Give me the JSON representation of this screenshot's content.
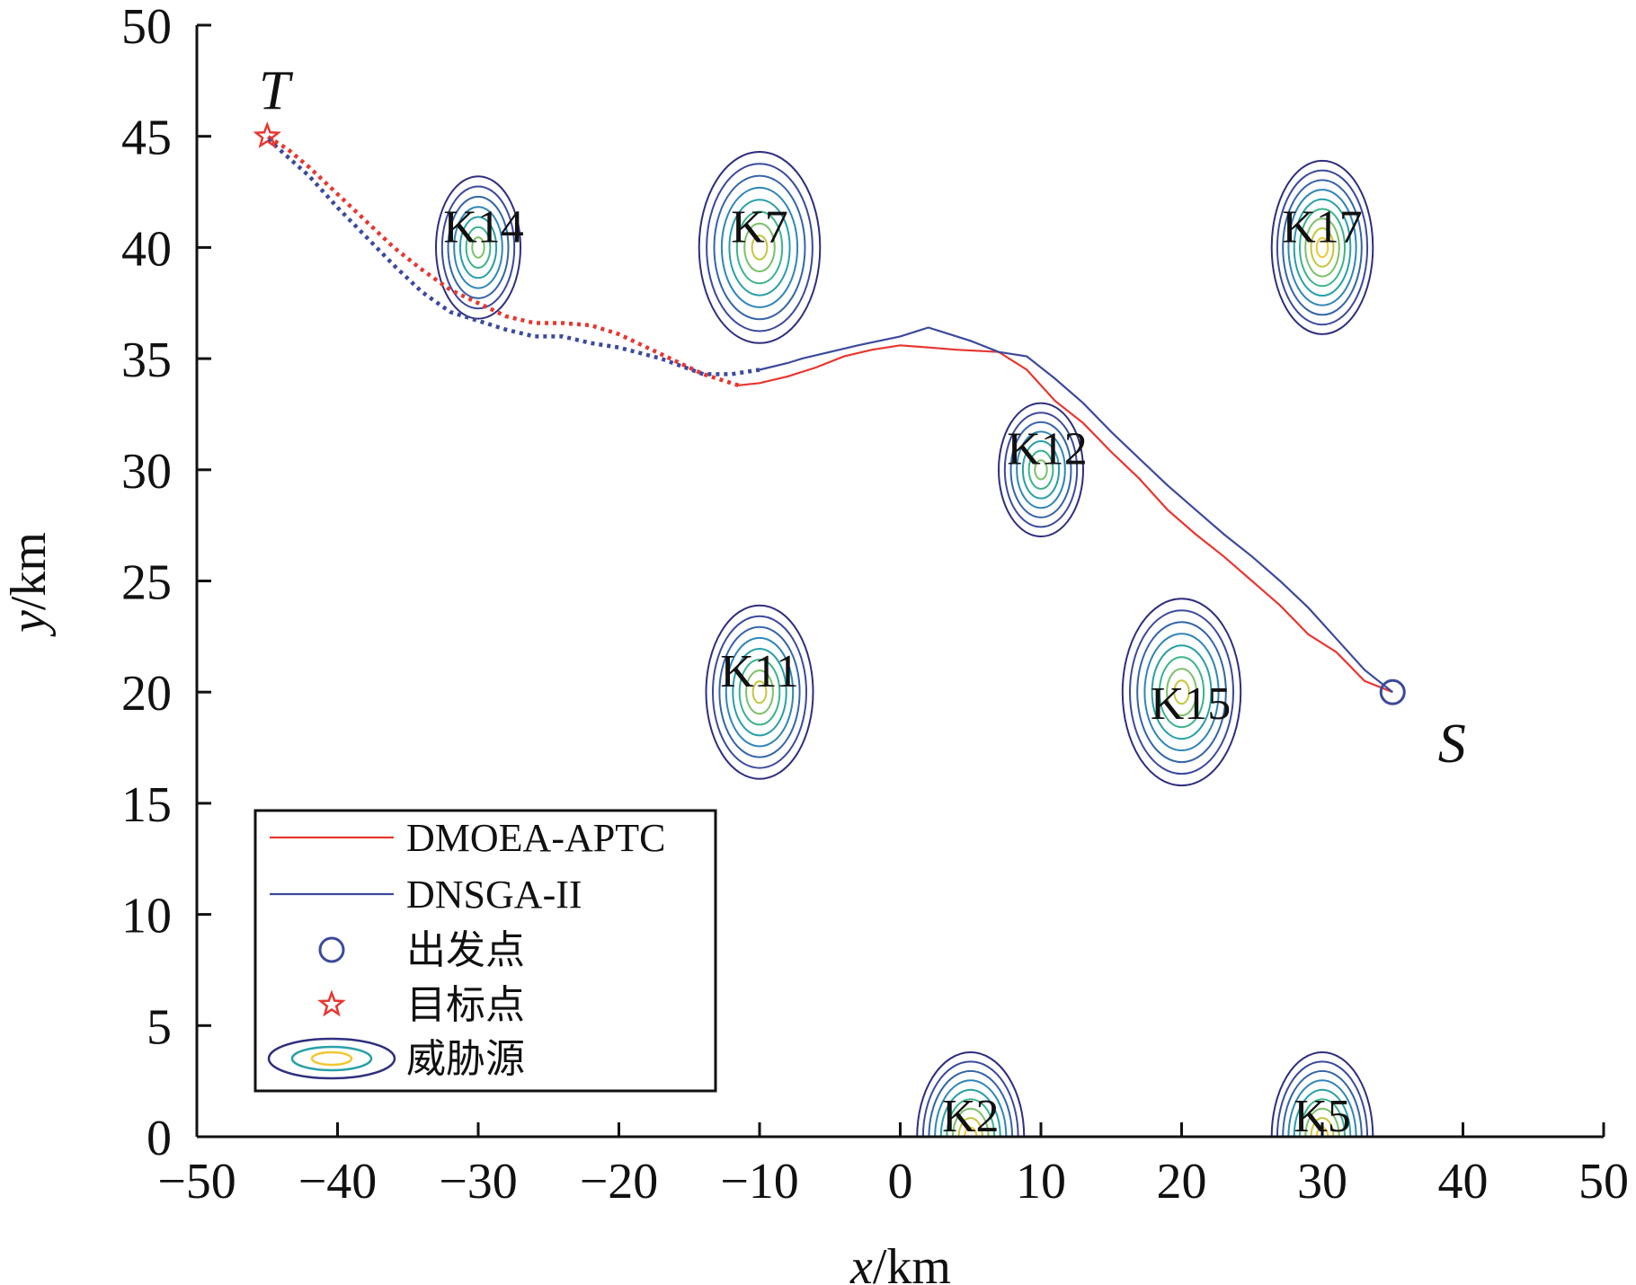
{
  "colors": {
    "dmoea": "#e8362f",
    "dnsga": "#3c4a9c",
    "axis": "#111111",
    "contours": [
      "#2f2e7e",
      "#3c4a9c",
      "#3565a8",
      "#2f86b8",
      "#28a0a8",
      "#3bb38e",
      "#7cc16a",
      "#c3c63e",
      "#f0c830"
    ]
  },
  "chart_data": {
    "type": "line",
    "xlabel_var": "x",
    "xlabel_unit": "/km",
    "ylabel_var": "y",
    "ylabel_unit": "/km",
    "xlim": [
      -50,
      50
    ],
    "ylim": [
      0,
      50
    ],
    "xticks": [
      -50,
      -40,
      -30,
      -20,
      -10,
      0,
      10,
      20,
      30,
      40,
      50
    ],
    "yticks": [
      0,
      5,
      10,
      15,
      20,
      25,
      30,
      35,
      40,
      45,
      50
    ],
    "xtick_labels": [
      "−50",
      "−40",
      "−30",
      "−20",
      "−10",
      "0",
      "10",
      "20",
      "30",
      "40",
      "50"
    ],
    "ytick_labels": [
      "0",
      "5",
      "10",
      "15",
      "20",
      "25",
      "30",
      "35",
      "40",
      "45",
      "50"
    ],
    "grid": false,
    "legend_position": "bottom-left",
    "start": {
      "label": "S",
      "x": 35,
      "y": 20
    },
    "target": {
      "label": "T",
      "x": -45,
      "y": 45
    },
    "threats": [
      {
        "label": "K14",
        "x": -30,
        "y": 40,
        "rx": 3.0,
        "ry": 3.2,
        "rings": 7
      },
      {
        "label": "K7",
        "x": -10,
        "y": 40,
        "rx": 4.3,
        "ry": 4.3,
        "rings": 8
      },
      {
        "label": "K17",
        "x": 30,
        "y": 40,
        "rx": 3.6,
        "ry": 3.9,
        "rings": 9
      },
      {
        "label": "K12",
        "x": 10,
        "y": 30,
        "rx": 3.0,
        "ry": 3.0,
        "rings": 7
      },
      {
        "label": "K11",
        "x": -10,
        "y": 20,
        "rx": 3.8,
        "ry": 3.9,
        "rings": 8
      },
      {
        "label": "K15",
        "x": 20,
        "y": 20,
        "rx": 4.2,
        "ry": 4.2,
        "rings": 8
      },
      {
        "label": "K2",
        "x": 5,
        "y": 0,
        "rx": 3.8,
        "ry": 3.8,
        "rings": 9
      },
      {
        "label": "K5",
        "x": 30,
        "y": 0,
        "rx": 3.6,
        "ry": 3.8,
        "rings": 9
      }
    ],
    "series": [
      {
        "name": "DMOEA-APTC",
        "solid": [
          [
            35,
            20
          ],
          [
            33,
            20.5
          ],
          [
            31,
            21.8
          ],
          [
            29,
            22.6
          ],
          [
            27,
            23.9
          ],
          [
            25,
            25
          ],
          [
            23,
            26.1
          ],
          [
            21,
            27.1
          ],
          [
            19,
            28.2
          ],
          [
            17,
            29.6
          ],
          [
            15,
            30.8
          ],
          [
            13,
            32.1
          ],
          [
            11,
            33.1
          ],
          [
            9,
            34.5
          ],
          [
            7,
            35.3
          ],
          [
            4,
            35.4
          ],
          [
            2,
            35.5
          ],
          [
            0,
            35.6
          ],
          [
            -2,
            35.4
          ],
          [
            -4,
            35.1
          ],
          [
            -6,
            34.6
          ],
          [
            -8,
            34.2
          ],
          [
            -10,
            33.9
          ],
          [
            -11.5,
            33.8
          ]
        ],
        "dotted": [
          [
            -11.5,
            33.8
          ],
          [
            -14,
            34.3
          ],
          [
            -17,
            35.2
          ],
          [
            -20,
            36.1
          ],
          [
            -22,
            36.5
          ],
          [
            -24,
            36.6
          ],
          [
            -26,
            36.6
          ],
          [
            -28,
            36.9
          ],
          [
            -30,
            37.5
          ],
          [
            -32,
            38.1
          ],
          [
            -34,
            39
          ],
          [
            -36,
            40
          ],
          [
            -38,
            41.2
          ],
          [
            -40,
            42.4
          ],
          [
            -42,
            43.6
          ],
          [
            -43.5,
            44.4
          ],
          [
            -45,
            45
          ]
        ]
      },
      {
        "name": "DNSGA-II",
        "solid": [
          [
            35,
            20
          ],
          [
            33,
            21
          ],
          [
            31,
            22.4
          ],
          [
            29,
            23.8
          ],
          [
            27,
            25
          ],
          [
            25,
            26.1
          ],
          [
            23,
            27.1
          ],
          [
            21,
            28.2
          ],
          [
            19,
            29.3
          ],
          [
            17,
            30.5
          ],
          [
            15,
            31.7
          ],
          [
            13,
            33
          ],
          [
            11,
            34.1
          ],
          [
            9,
            35.1
          ],
          [
            7,
            35.3
          ],
          [
            5,
            35.8
          ],
          [
            3,
            36.2
          ],
          [
            2,
            36.4
          ],
          [
            0,
            36
          ],
          [
            -3,
            35.6
          ],
          [
            -5,
            35.3
          ],
          [
            -7,
            35
          ],
          [
            -8,
            34.8
          ],
          [
            -10,
            34.5
          ]
        ],
        "dotted": [
          [
            -10,
            34.5
          ],
          [
            -12,
            34.3
          ],
          [
            -14,
            34.3
          ],
          [
            -17,
            35
          ],
          [
            -20,
            35.5
          ],
          [
            -22,
            35.7
          ],
          [
            -24,
            36
          ],
          [
            -26,
            36
          ],
          [
            -28,
            36.3
          ],
          [
            -30,
            36.7
          ],
          [
            -32,
            37.1
          ],
          [
            -34,
            38
          ],
          [
            -36,
            39.2
          ],
          [
            -38,
            40.5
          ],
          [
            -40,
            41.8
          ],
          [
            -42,
            43.2
          ],
          [
            -45,
            44.9
          ]
        ]
      }
    ]
  },
  "legend": {
    "items": [
      {
        "kind": "line",
        "series": "dmoea",
        "label": "DMOEA-APTC"
      },
      {
        "kind": "line",
        "series": "dnsga",
        "label": "DNSGA-II"
      },
      {
        "kind": "circle",
        "label": "出发点"
      },
      {
        "kind": "star",
        "label": "目标点"
      },
      {
        "kind": "ellipse",
        "label": "威胁源"
      }
    ]
  }
}
